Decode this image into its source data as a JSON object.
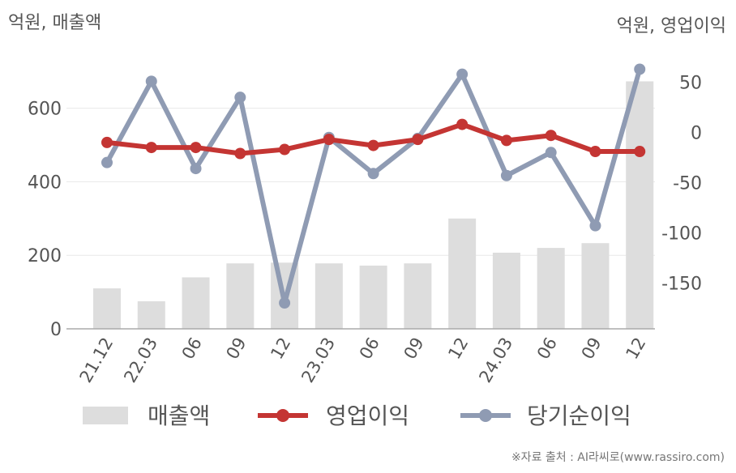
{
  "chart_data": {
    "type": "bar-line-combo",
    "left_axis_label": "억원, 매출액",
    "right_axis_label": "억원, 영업이익",
    "categories": [
      "21.12",
      "22.03",
      "06",
      "09",
      "12",
      "23.03",
      "06",
      "09",
      "12",
      "24.03",
      "06",
      "09",
      "12"
    ],
    "left_ylim": [
      0,
      740
    ],
    "left_ticks": [
      0,
      200,
      400,
      600
    ],
    "right_ylim": [
      -195,
      65
    ],
    "right_ticks": [
      50,
      0,
      -50,
      -100,
      -150
    ],
    "series": [
      {
        "name": "매출액",
        "type": "bar",
        "axis": "left",
        "color": "#dddddd",
        "values": [
          110,
          75,
          140,
          178,
          180,
          178,
          172,
          178,
          300,
          207,
          220,
          233,
          673
        ]
      },
      {
        "name": "영업이익",
        "type": "line",
        "axis": "right",
        "color": "#c43533",
        "values": [
          -10,
          -15,
          -15,
          -21,
          -17,
          -7,
          -13,
          -7,
          8,
          -8,
          -3,
          -19,
          -19
        ]
      },
      {
        "name": "당기순이익",
        "type": "line",
        "axis": "right",
        "color": "#8f9bb3",
        "values": [
          -30,
          51,
          -36,
          35,
          -170,
          -5,
          -41,
          -6,
          58,
          -43,
          -20,
          -93,
          63
        ]
      }
    ],
    "grid": true,
    "legend_position": "bottom"
  },
  "source_text": "※자료 출처 : AI라씨로(www.rassiro.com)"
}
